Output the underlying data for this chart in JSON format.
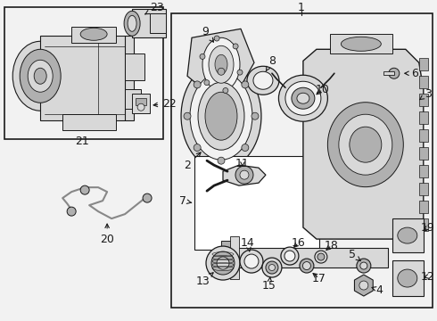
{
  "bg_color": "#f2f2f2",
  "white": "#ffffff",
  "dark": "#1a1a1a",
  "gray_light": "#d8d8d8",
  "gray_mid": "#b0b0b0",
  "gray_dark": "#888888",
  "figsize": [
    4.9,
    3.6
  ],
  "dpi": 100,
  "label_fs": 9,
  "small_fs": 7
}
